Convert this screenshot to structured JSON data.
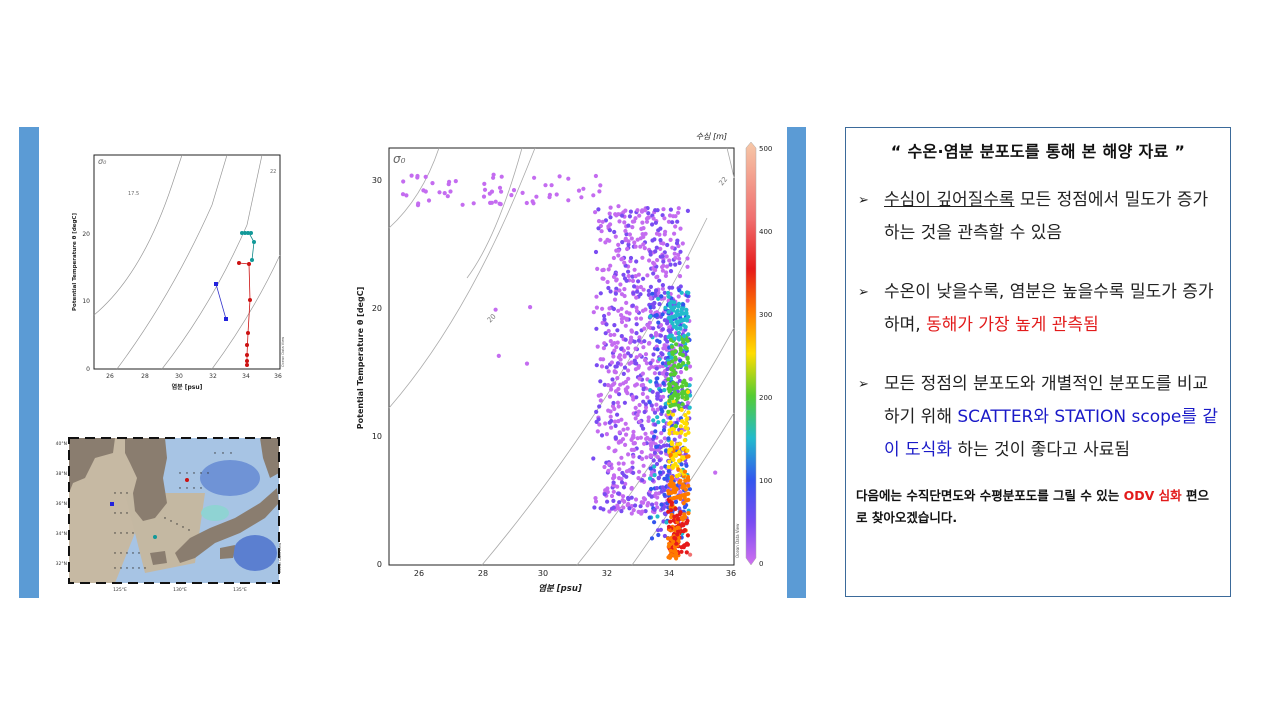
{
  "left_panel": {
    "small_ts": {
      "sigma_label": "σ₀",
      "ylabel": "Potential Temperature θ [degC]",
      "xlabel": "염분 [psu]",
      "xticks": [
        "26",
        "28",
        "30",
        "32",
        "34",
        "36"
      ],
      "yticks": [
        "0",
        "10",
        "20"
      ],
      "isopycnal_labels": [
        "17.5",
        "22"
      ],
      "watermark": "Ocean Data View"
    },
    "map": {
      "lat_labels": [
        "40°N",
        "38°N",
        "36°N",
        "34°N",
        "32°N"
      ],
      "lon_labels": [
        "125°E",
        "130°E",
        "135°E"
      ],
      "watermark": "Ocean Data View"
    }
  },
  "big_ts": {
    "sigma_label": "σ₀",
    "ylabel": "Potential Temperature θ [degC]",
    "xlabel": "염분 [psu]",
    "xticks": [
      "26",
      "28",
      "30",
      "32",
      "34",
      "36"
    ],
    "yticks": [
      "0",
      "10",
      "20",
      "30"
    ],
    "isopycnal_labels": [
      "20",
      "22"
    ],
    "colorbar": {
      "title": "수심 [m]",
      "ticks": [
        "0",
        "100",
        "200",
        "300",
        "400",
        "500"
      ],
      "watermark": "Ocean Data View"
    }
  },
  "textbox": {
    "title": "“ 수온·염분 분포도를 통해 본 해양 자료 ”",
    "bullet_glyph": "➢",
    "b1": {
      "u": "수심이 깊어질수록",
      "rest": " 모든 정점에서 밀도가 증가하는 것을 관측할 수 있음"
    },
    "b2": {
      "a": "수온이 낮을수록, 염분은 높을수록 밀도가 증가하며, ",
      "red": "동해가 가장 높게 관측됨"
    },
    "b3": {
      "a": "모든 정점의 분포도와 개별적인 분포도를 비교하기 위해 ",
      "blue1": "SCATTER",
      "b": "와 ",
      "blue2": "STATION scope",
      "c": "를 같이 도식화",
      "d": " 하는 것이 좋다고 사료됨"
    },
    "footer": {
      "a": "다음에는 수직단면도와 수평분포도를 그릴 수 있는 ",
      "red1": "ODV 심화",
      "b": " 편으로 찾아오겠습니다."
    }
  },
  "colors": {
    "accent_bar": "#5b9bd5",
    "red": "#e21b1b",
    "blue": "#1a1ac8",
    "border": "#3b6a9a"
  }
}
